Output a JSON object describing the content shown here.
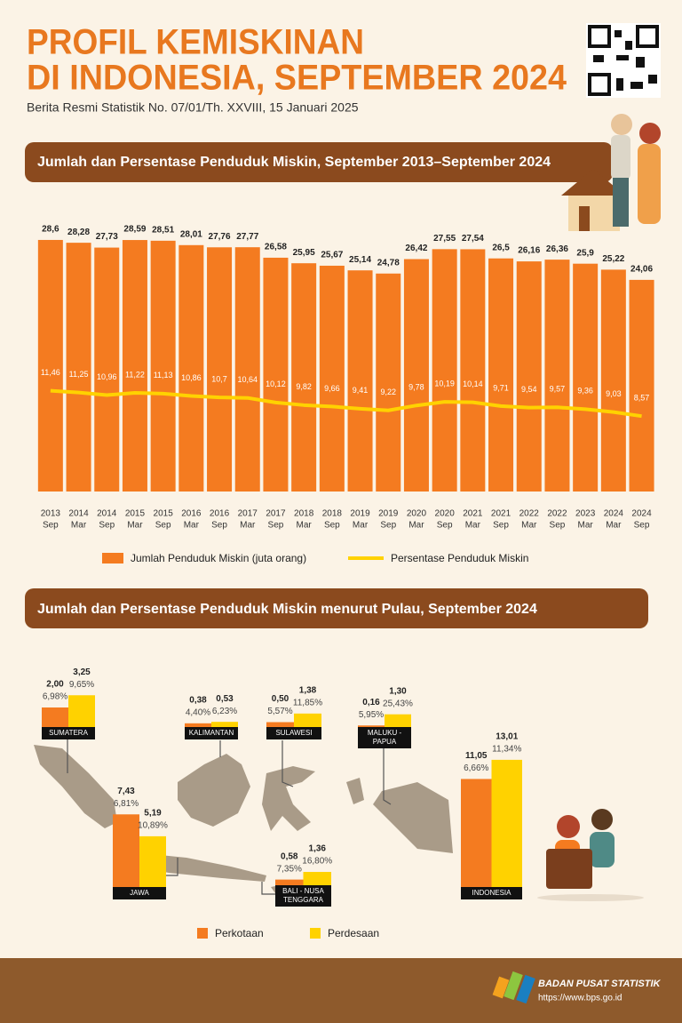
{
  "header": {
    "title_lines": [
      "PROFIL KEMISKINAN",
      "DI INDONESIA, SEPTEMBER 2024"
    ],
    "subtitle": "Berita Resmi Statistik No. 07/01/Th. XXVIII, 15 Januari 2025"
  },
  "chart_data": [
    {
      "type": "combo",
      "title": "Jumlah dan Persentase Penduduk Miskin, September 2013–September 2024",
      "categories": [
        {
          "year": "2013",
          "month": "Sep"
        },
        {
          "year": "2014",
          "month": "Mar"
        },
        {
          "year": "2014",
          "month": "Sep"
        },
        {
          "year": "2015",
          "month": "Mar"
        },
        {
          "year": "2015",
          "month": "Sep"
        },
        {
          "year": "2016",
          "month": "Mar"
        },
        {
          "year": "2016",
          "month": "Sep"
        },
        {
          "year": "2017",
          "month": "Mar"
        },
        {
          "year": "2017",
          "month": "Sep"
        },
        {
          "year": "2018",
          "month": "Mar"
        },
        {
          "year": "2018",
          "month": "Sep"
        },
        {
          "year": "2019",
          "month": "Mar"
        },
        {
          "year": "2019",
          "month": "Sep"
        },
        {
          "year": "2020",
          "month": "Mar"
        },
        {
          "year": "2020",
          "month": "Sep"
        },
        {
          "year": "2021",
          "month": "Mar"
        },
        {
          "year": "2021",
          "month": "Sep"
        },
        {
          "year": "2022",
          "month": "Mar"
        },
        {
          "year": "2022",
          "month": "Sep"
        },
        {
          "year": "2023",
          "month": "Mar"
        },
        {
          "year": "2024",
          "month": "Mar"
        },
        {
          "year": "2024",
          "month": "Sep"
        }
      ],
      "ylim": [
        0,
        29
      ],
      "series": [
        {
          "name": "Jumlah Penduduk Miskin (juta orang)",
          "type": "bar",
          "color": "#f47b20",
          "values": [
            28.6,
            28.28,
            27.73,
            28.59,
            28.51,
            28.01,
            27.76,
            27.77,
            26.58,
            25.95,
            25.67,
            25.14,
            24.78,
            26.42,
            27.55,
            27.54,
            26.5,
            26.16,
            26.36,
            25.9,
            25.22,
            24.06
          ],
          "value_labels": [
            "28,6",
            "28,28",
            "27,73",
            "28,59",
            "28,51",
            "28,01",
            "27,76",
            "27,77",
            "26,58",
            "25,95",
            "25,67",
            "25,14",
            "24,78",
            "26,42",
            "27,55",
            "27,54",
            "26,5",
            "26,16",
            "26,36",
            "25,9",
            "25,22",
            "24,06"
          ]
        },
        {
          "name": "Persentase Penduduk Miskin",
          "type": "line",
          "color": "#ffd200",
          "values": [
            11.46,
            11.25,
            10.96,
            11.22,
            11.13,
            10.86,
            10.7,
            10.64,
            10.12,
            9.82,
            9.66,
            9.41,
            9.22,
            9.78,
            10.19,
            10.14,
            9.71,
            9.54,
            9.57,
            9.36,
            9.03,
            8.57
          ],
          "value_labels": [
            "11,46",
            "11,25",
            "10,96",
            "11,22",
            "11,13",
            "10,86",
            "10,7",
            "10,64",
            "10,12",
            "9,82",
            "9,66",
            "9,41",
            "9,22",
            "9,78",
            "10,19",
            "10,14",
            "9,71",
            "9,54",
            "9,57",
            "9,36",
            "9,03",
            "8,57"
          ]
        }
      ]
    },
    {
      "type": "grouped_bar",
      "title": "Jumlah dan Persentase Penduduk Miskin menurut Pulau, September 2024",
      "categories": [
        "SUMATERA",
        "KALIMANTAN",
        "SULAWESI",
        "MALUKU - PAPUA",
        "JAWA",
        "BALI - NUSA TENGGARA",
        "INDONESIA"
      ],
      "ylim": [
        0,
        14
      ],
      "series": [
        {
          "name": "Perkotaan",
          "color": "#f47b20",
          "values": [
            2.0,
            0.38,
            0.5,
            0.16,
            7.43,
            0.58,
            11.05
          ],
          "value_labels": [
            "2,00",
            "0,38",
            "0,50",
            "0,16",
            "7,43",
            "0,58",
            "11,05"
          ],
          "percents": [
            6.98,
            4.4,
            5.57,
            5.95,
            6.81,
            7.35,
            6.66
          ],
          "percent_labels": [
            "6,98%",
            "4,40%",
            "5,57%",
            "5,95%",
            "6,81%",
            "7,35%",
            "6,66%"
          ]
        },
        {
          "name": "Perdesaan",
          "color": "#ffd200",
          "values": [
            3.25,
            0.53,
            1.38,
            1.3,
            5.19,
            1.36,
            13.01
          ],
          "value_labels": [
            "3,25",
            "0,53",
            "1,38",
            "1,30",
            "5,19",
            "1,36",
            "13,01"
          ],
          "percents": [
            9.65,
            6.23,
            11.85,
            25.43,
            10.89,
            16.8,
            11.34
          ],
          "percent_labels": [
            "9,65%",
            "6,23%",
            "11,85%",
            "25,43%",
            "10,89%",
            "16,80%",
            "11,34%"
          ]
        }
      ]
    }
  ],
  "footer": {
    "org": "BADAN PUSAT STATISTIK",
    "url": "https://www.bps.go.id"
  }
}
